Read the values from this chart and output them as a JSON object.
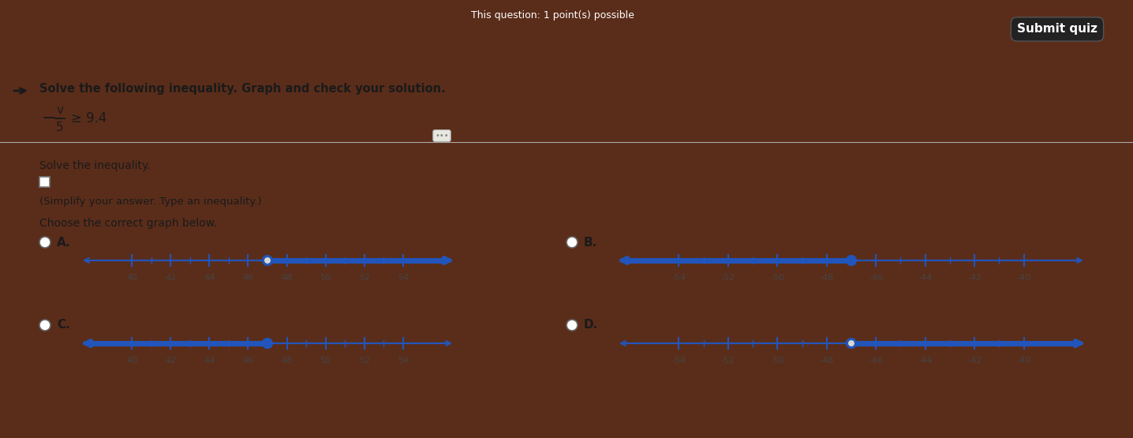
{
  "bg_top": "#5a2d1a",
  "bg_main": "#d8d8d0",
  "title_text": "This question: 1 point(s) possible",
  "submit_text": "Submit quiz",
  "header_text": "Solve the following inequality. Graph and check your solution.",
  "solve_text": "Solve the inequality.",
  "simplify_text": "(Simplify your answer. Type an inequality.)",
  "choose_text": "Choose the correct graph below.",
  "graphs": [
    {
      "label": "A.",
      "xmin": 38,
      "xmax": 56,
      "ticks": [
        40,
        42,
        44,
        46,
        48,
        50,
        52,
        54
      ],
      "circle_at": 47,
      "open_circle": true,
      "shade_right": true
    },
    {
      "label": "B.",
      "xmin": -56,
      "xmax": -38,
      "ticks": [
        -54,
        -52,
        -50,
        -48,
        -46,
        -44,
        -42,
        -40
      ],
      "circle_at": -47,
      "open_circle": false,
      "shade_right": false
    },
    {
      "label": "C.",
      "xmin": 38,
      "xmax": 56,
      "ticks": [
        40,
        42,
        44,
        46,
        48,
        50,
        52,
        54
      ],
      "circle_at": 47,
      "open_circle": false,
      "shade_right": false
    },
    {
      "label": "D.",
      "xmin": -56,
      "xmax": -38,
      "ticks": [
        -54,
        -52,
        -50,
        -48,
        -46,
        -44,
        -42,
        -40
      ],
      "circle_at": -47,
      "open_circle": true,
      "shade_right": true
    }
  ],
  "line_color": "#2255bb",
  "open_fill": "#d8d8d0",
  "closed_fill": "#2255bb"
}
